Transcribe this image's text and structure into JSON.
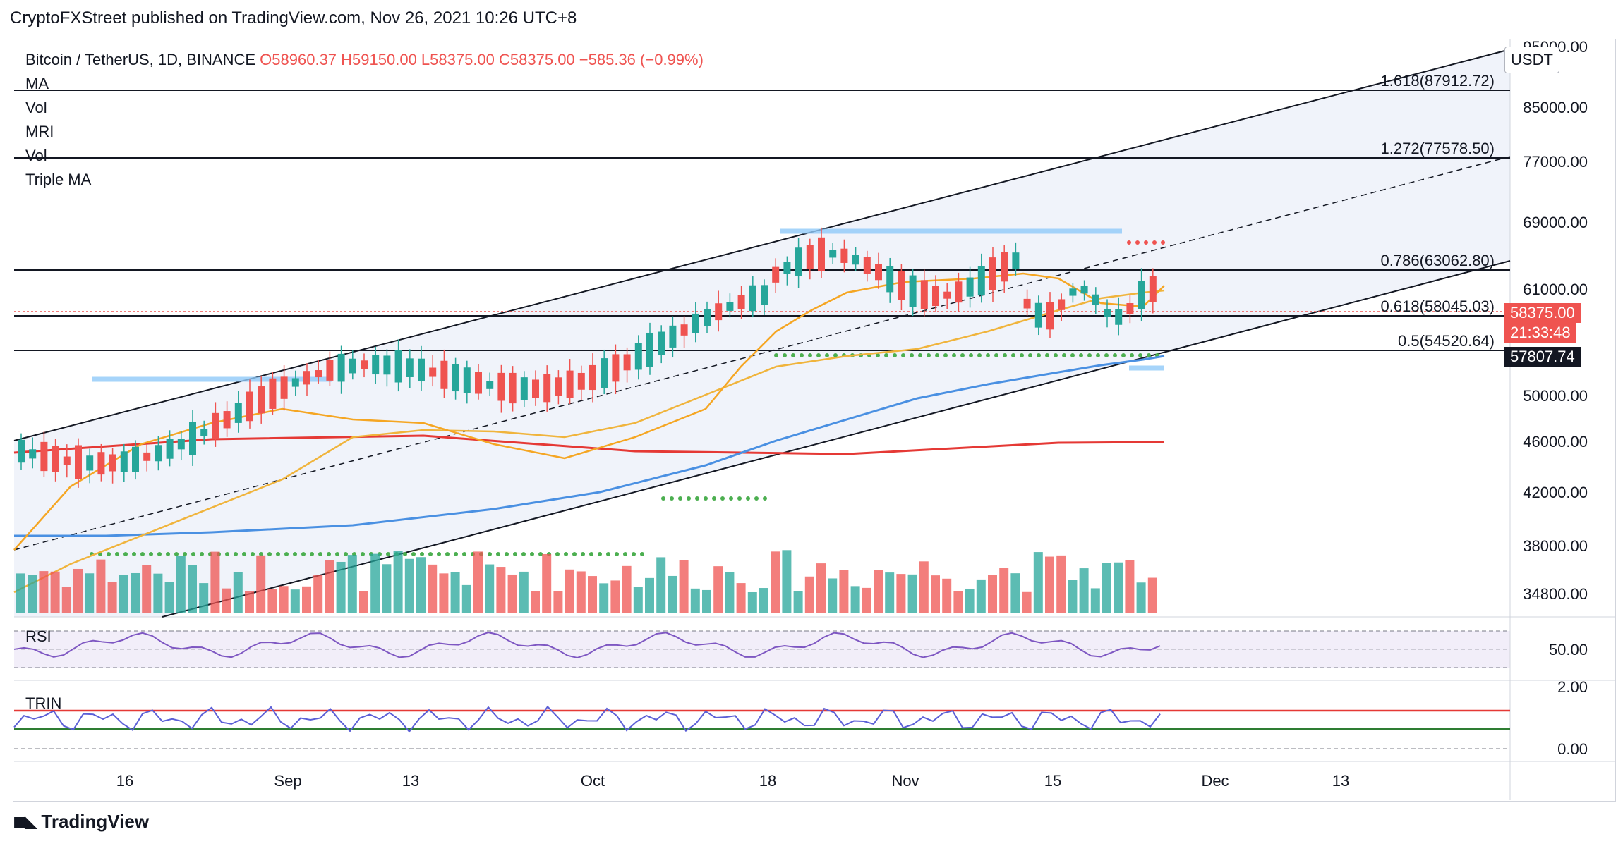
{
  "header": "CryptoFXStreet published on TradingView.com, Nov 26, 2021 10:26 UTC+8",
  "legend": {
    "symbol": "Bitcoin / TetherUS, 1D, BINANCE",
    "ohlc": "O58960.37  H59150.00  L58375.00  C58375.00  −585.36 (−0.99%)",
    "indicators": [
      "MA",
      "Vol",
      "MRI",
      "Vol",
      "Triple MA"
    ]
  },
  "currency_button": "USDT",
  "price_tags": {
    "last": "58375.00",
    "countdown": "21:33:48",
    "level": "57807.74"
  },
  "rsi_label": "RSI",
  "trin_label": "TRIN",
  "brand": "TradingView",
  "colors": {
    "up": "#26a69a",
    "down": "#ef5350",
    "ma20": "#f5a623",
    "ma50": "#f0b43c",
    "ma100": "#4a90e2",
    "ma200": "#e53935"
  },
  "chart_data": {
    "type": "candlestick",
    "title": "Bitcoin / TetherUS, 1D, BINANCE",
    "y_ticks": [
      "95000.00",
      "85000.00",
      "77000.00",
      "69000.00",
      "61000.00",
      "50000.00",
      "46000.00",
      "42000.00",
      "38000.00",
      "34800.00"
    ],
    "x_ticks": [
      "16",
      "Sep",
      "13",
      "Oct",
      "18",
      "Nov",
      "15",
      "Dec",
      "13"
    ],
    "fib_levels": [
      {
        "label": "1.618(87912.72)",
        "value": 87912.72
      },
      {
        "label": "1.272(77578.50)",
        "value": 77578.5
      },
      {
        "label": "0.786(63062.80)",
        "value": 63062.8
      },
      {
        "label": "0.618(58045.03)",
        "value": 58045.03
      },
      {
        "label": "0.5(54520.64)",
        "value": 54520.64
      }
    ],
    "rsi_ticks": [
      "50.00"
    ],
    "trin_ticks": [
      "2.00",
      "0.00"
    ],
    "last_price": 58375.0,
    "level": 57807.74
  }
}
